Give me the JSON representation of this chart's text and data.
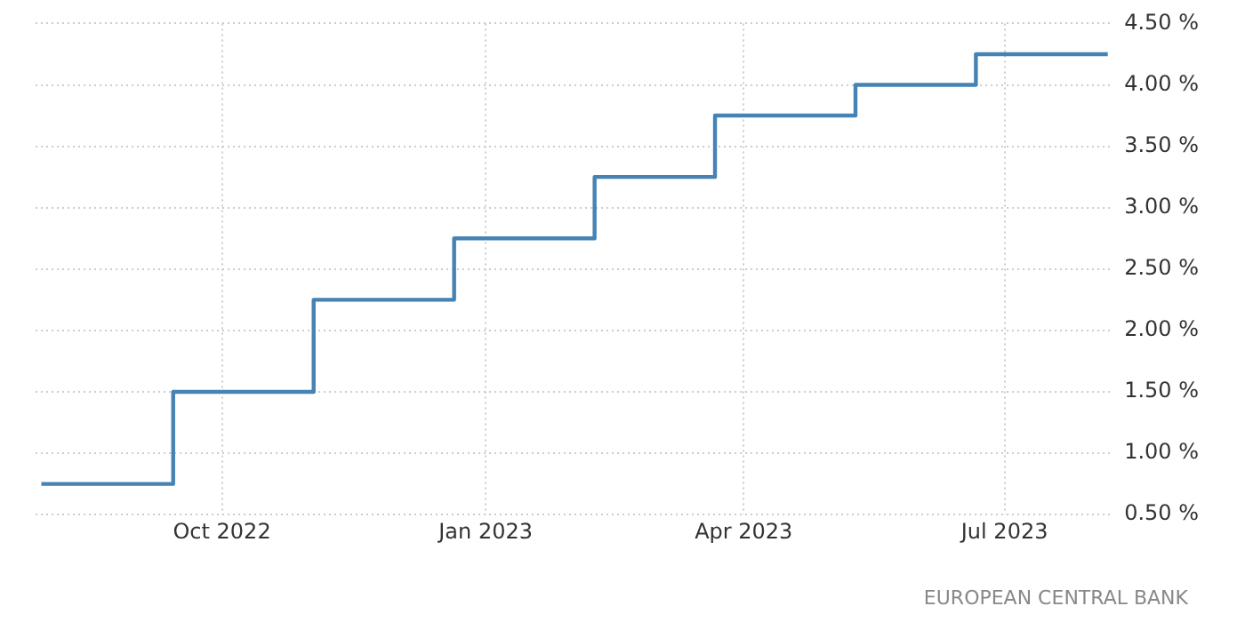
{
  "chart_data": {
    "type": "step",
    "x": [
      "2022-07-30",
      "2022-09-14",
      "2022-11-02",
      "2022-12-21",
      "2023-02-08",
      "2023-03-22",
      "2023-05-10",
      "2023-06-21",
      "2023-08-06"
    ],
    "series": [
      {
        "color": "#4682b4",
        "values": [
          0.75,
          1.5,
          2.25,
          2.75,
          3.25,
          3.75,
          4.0,
          4.25,
          4.25
        ]
      }
    ],
    "xlim": [
      "2022-07-28",
      "2023-08-08"
    ],
    "xticks": [
      {
        "value": "2022-10-01",
        "label": "Oct 2022"
      },
      {
        "value": "2023-01-01",
        "label": "Jan 2023"
      },
      {
        "value": "2023-04-01",
        "label": "Apr 2023"
      },
      {
        "value": "2023-07-01",
        "label": "Jul 2023"
      }
    ],
    "ylim": [
      0.5,
      4.5
    ],
    "yticks": [
      {
        "value": 0.5,
        "label": "0.50 %"
      },
      {
        "value": 1.0,
        "label": "1.00 %"
      },
      {
        "value": 1.5,
        "label": "1.50 %"
      },
      {
        "value": 2.0,
        "label": "2.00 %"
      },
      {
        "value": 2.5,
        "label": "2.50 %"
      },
      {
        "value": 3.0,
        "label": "3.00 %"
      },
      {
        "value": 3.5,
        "label": "3.50 %"
      },
      {
        "value": 4.0,
        "label": "4.00 %"
      },
      {
        "value": 4.5,
        "label": "4.50 %"
      }
    ],
    "grid": true,
    "line_style": "solid",
    "annotations": [
      "EUROPEAN CENTRAL BANK"
    ]
  }
}
